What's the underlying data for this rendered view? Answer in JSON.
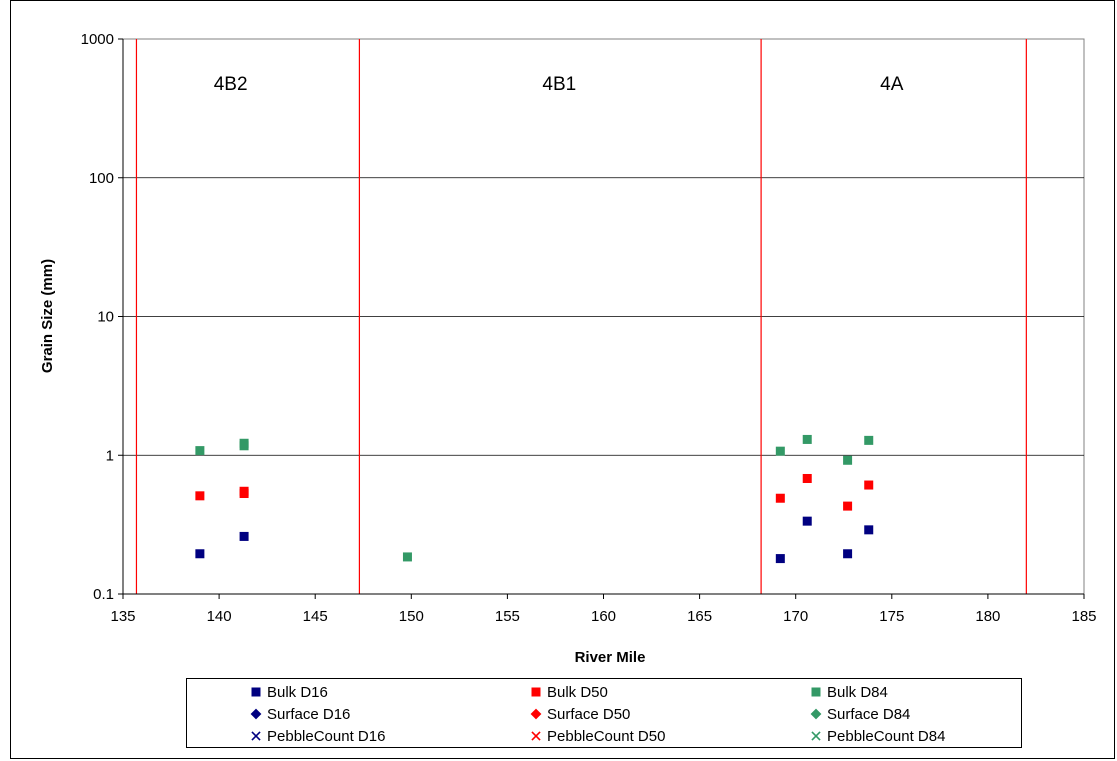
{
  "chart_data": {
    "type": "scatter",
    "title": "",
    "xlabel": "River Mile",
    "ylabel": "Grain Size (mm)",
    "xlim": [
      135,
      185
    ],
    "ylim": [
      0.1,
      1000
    ],
    "yscale": "log",
    "grid": "horizontal",
    "x_ticks": [
      "135",
      "140",
      "145",
      "150",
      "155",
      "160",
      "165",
      "170",
      "175",
      "180",
      "185"
    ],
    "y_ticks": [
      "0.1",
      "1",
      "10",
      "100",
      "1000"
    ],
    "reach_boundaries": [
      135.7,
      147.3,
      168.2,
      182.0
    ],
    "boundary_color": "#ff0000",
    "reach_labels": [
      {
        "text": "4B2",
        "x": 140.6
      },
      {
        "text": "4B1",
        "x": 157.7
      },
      {
        "text": "4A",
        "x": 175.0
      }
    ],
    "series": [
      {
        "name": "Bulk D16",
        "marker": "square",
        "color": "#000080",
        "points": [
          [
            139.0,
            0.195
          ],
          [
            141.3,
            0.26
          ],
          [
            169.2,
            0.18
          ],
          [
            170.6,
            0.335
          ],
          [
            172.7,
            0.195
          ],
          [
            173.8,
            0.29
          ]
        ]
      },
      {
        "name": "Bulk D50",
        "marker": "square",
        "color": "#ff0000",
        "points": [
          [
            139.0,
            0.51
          ],
          [
            141.3,
            0.53
          ],
          [
            141.3,
            0.55
          ],
          [
            169.2,
            0.49
          ],
          [
            170.6,
            0.68
          ],
          [
            172.7,
            0.43
          ],
          [
            173.8,
            0.61
          ]
        ]
      },
      {
        "name": "Bulk D84",
        "marker": "square",
        "color": "#339966",
        "points": [
          [
            139.0,
            1.08
          ],
          [
            141.3,
            1.17
          ],
          [
            141.3,
            1.22
          ],
          [
            149.8,
            0.185
          ],
          [
            169.2,
            1.07
          ],
          [
            170.6,
            1.3
          ],
          [
            172.7,
            0.92
          ],
          [
            173.8,
            1.28
          ]
        ]
      },
      {
        "name": "Surface D16",
        "marker": "diamond",
        "color": "#000080",
        "points": []
      },
      {
        "name": "Surface D50",
        "marker": "diamond",
        "color": "#ff0000",
        "points": []
      },
      {
        "name": "Surface D84",
        "marker": "diamond",
        "color": "#339966",
        "points": []
      },
      {
        "name": "PebbleCount D16",
        "marker": "x",
        "color": "#000080",
        "points": []
      },
      {
        "name": "PebbleCount D50",
        "marker": "x",
        "color": "#ff0000",
        "points": []
      },
      {
        "name": "PebbleCount D84",
        "marker": "x",
        "color": "#339966",
        "points": []
      }
    ],
    "legend_position": "bottom"
  }
}
